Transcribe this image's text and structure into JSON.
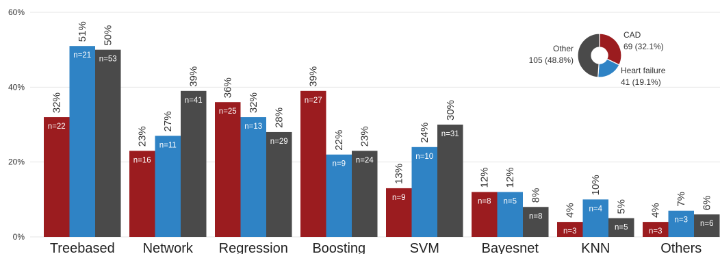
{
  "chart_data": [
    {
      "type": "bar",
      "title": "",
      "xlabel": "",
      "ylabel": "",
      "ylim": [
        0,
        60
      ],
      "yticks": [
        "0%",
        "20%",
        "40%",
        "60%"
      ],
      "grid": true,
      "categories": [
        "Treebased",
        "Network",
        "Regression",
        "Boosting",
        "SVM",
        "Bayesnet",
        "KNN",
        "Others"
      ],
      "series": [
        {
          "color": "#9b1c1f",
          "values": [
            32,
            23,
            36,
            39,
            13,
            12,
            4,
            4
          ],
          "value_labels": [
            "32%",
            "23%",
            "36%",
            "39%",
            "13%",
            "12%",
            "4%",
            "4%"
          ],
          "n_labels": [
            "n=22",
            "n=16",
            "n=25",
            "n=27",
            "n=9",
            "n=8",
            "n=3",
            "n=3"
          ]
        },
        {
          "color": "#2f83c5",
          "values": [
            51,
            27,
            32,
            22,
            24,
            12,
            10,
            7
          ],
          "value_labels": [
            "51%",
            "27%",
            "32%",
            "22%",
            "24%",
            "12%",
            "10%",
            "7%"
          ],
          "n_labels": [
            "n=21",
            "n=11",
            "n=13",
            "n=9",
            "n=10",
            "n=5",
            "n=4",
            "n=3"
          ]
        },
        {
          "color": "#4a4a4a",
          "values": [
            50,
            39,
            28,
            23,
            30,
            8,
            5,
            6
          ],
          "value_labels": [
            "50%",
            "39%",
            "28%",
            "23%",
            "30%",
            "8%",
            "5%",
            "6%"
          ],
          "n_labels": [
            "n=53",
            "n=41",
            "n=29",
            "n=24",
            "n=31",
            "n=8",
            "n=5",
            "n=6"
          ]
        }
      ]
    },
    {
      "type": "pie",
      "donut": true,
      "slices": [
        {
          "name": "CAD",
          "value": 69,
          "label": "69 (32.1%)",
          "color": "#9b1c1f"
        },
        {
          "name": "Heart failure",
          "value": 41,
          "label": "41 (19.1%)",
          "color": "#2f83c5"
        },
        {
          "name": "Other",
          "value": 105,
          "label": "105 (48.8%)",
          "color": "#4a4a4a"
        }
      ]
    }
  ]
}
